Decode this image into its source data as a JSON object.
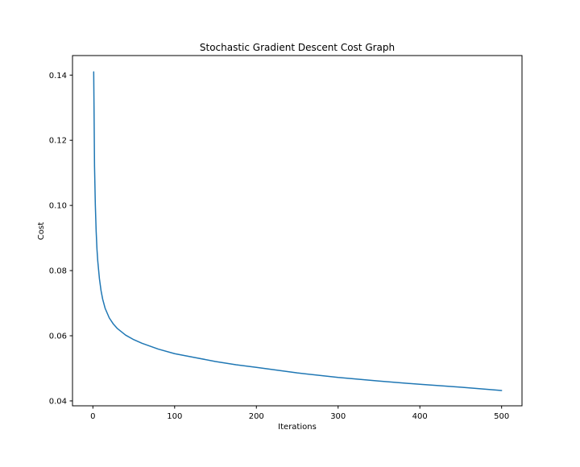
{
  "chart_data": {
    "type": "line",
    "title": "Stochastic Gradient Descent Cost Graph",
    "xlabel": "Iterations",
    "ylabel": "Cost",
    "xlim": [
      -24.95,
      524.95
    ],
    "ylim": [
      0.0385,
      0.146
    ],
    "xticks": [
      0,
      100,
      200,
      300,
      400,
      500
    ],
    "yticks": [
      0.04,
      0.06,
      0.08,
      0.1,
      0.12,
      0.14
    ],
    "ytick_labels": [
      "0.04",
      "0.06",
      "0.08",
      "0.10",
      "0.12",
      "0.14"
    ],
    "grid": false,
    "legend": "none",
    "series": [
      {
        "color": "#1f77b4",
        "x": [
          1,
          2,
          3,
          4,
          5,
          6,
          8,
          10,
          12,
          15,
          20,
          25,
          30,
          40,
          50,
          60,
          80,
          100,
          125,
          150,
          175,
          200,
          250,
          300,
          350,
          400,
          450,
          500
        ],
        "y": [
          0.141,
          0.112,
          0.1,
          0.092,
          0.0865,
          0.0828,
          0.0775,
          0.0738,
          0.0712,
          0.0684,
          0.0655,
          0.0636,
          0.0622,
          0.0602,
          0.0588,
          0.0577,
          0.0559,
          0.0545,
          0.0533,
          0.0521,
          0.0511,
          0.0503,
          0.0486,
          0.0472,
          0.0461,
          0.0451,
          0.0442,
          0.0432
        ]
      }
    ]
  }
}
